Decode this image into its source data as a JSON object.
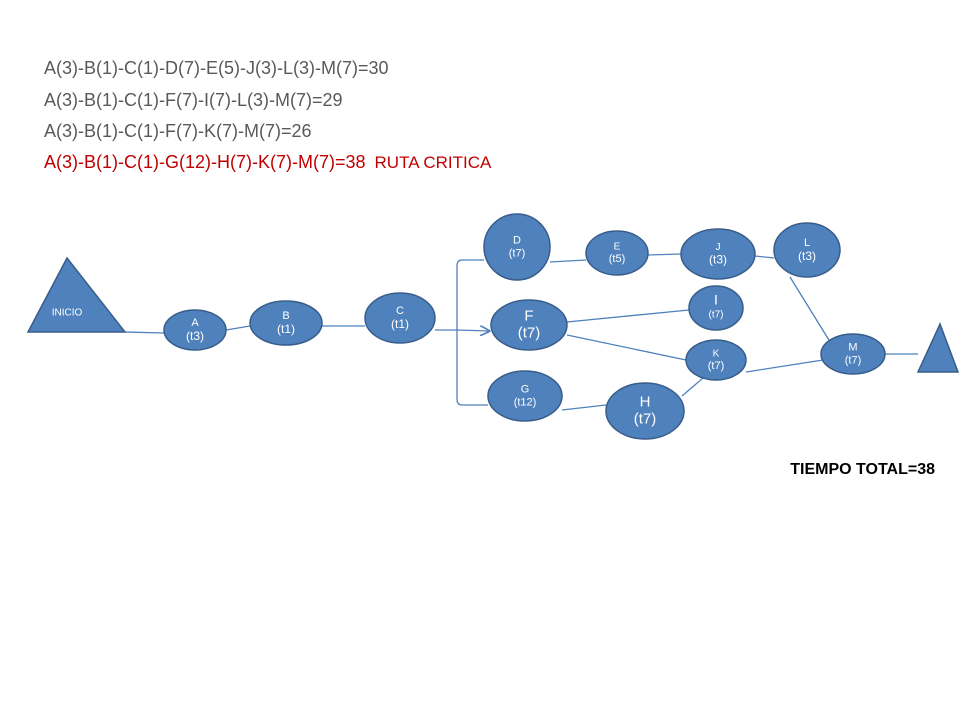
{
  "routes": [
    {
      "text": "A(3)-B(1)-C(1)-D(7)-E(5)-J(3)-L(3)-M(7)=30"
    },
    {
      "text": "A(3)-B(1)-C(1)-F(7)-I(7)-L(3)-M(7)=29"
    },
    {
      "text": "A(3)-B(1)-C(1)-F(7)-K(7)-M(7)=26"
    },
    {
      "text": "A(3)-B(1)-C(1)-G(12)-H(7)-K(7)-M(7)=38",
      "note": "RUTA CRITICA"
    }
  ],
  "start": "INICIO",
  "nodes": [
    {
      "name": "A",
      "time": "(t3)"
    },
    {
      "name": "B",
      "time": "(t1)"
    },
    {
      "name": "C",
      "time": "(t1)"
    },
    {
      "name": "D",
      "time": "(t7)"
    },
    {
      "name": "E",
      "time": "(t5)"
    },
    {
      "name": "J",
      "time": "(t3)"
    },
    {
      "name": "L",
      "time": "(t3)"
    },
    {
      "name": "F",
      "time": "(t7)"
    },
    {
      "name": "I",
      "time": "(t7)"
    },
    {
      "name": "K",
      "time": "(t7)"
    },
    {
      "name": "M",
      "time": "(t7)"
    },
    {
      "name": "G",
      "time": "(t12)"
    },
    {
      "name": "H",
      "time": "(t7)"
    }
  ],
  "total": "TIEMPO TOTAL=38"
}
